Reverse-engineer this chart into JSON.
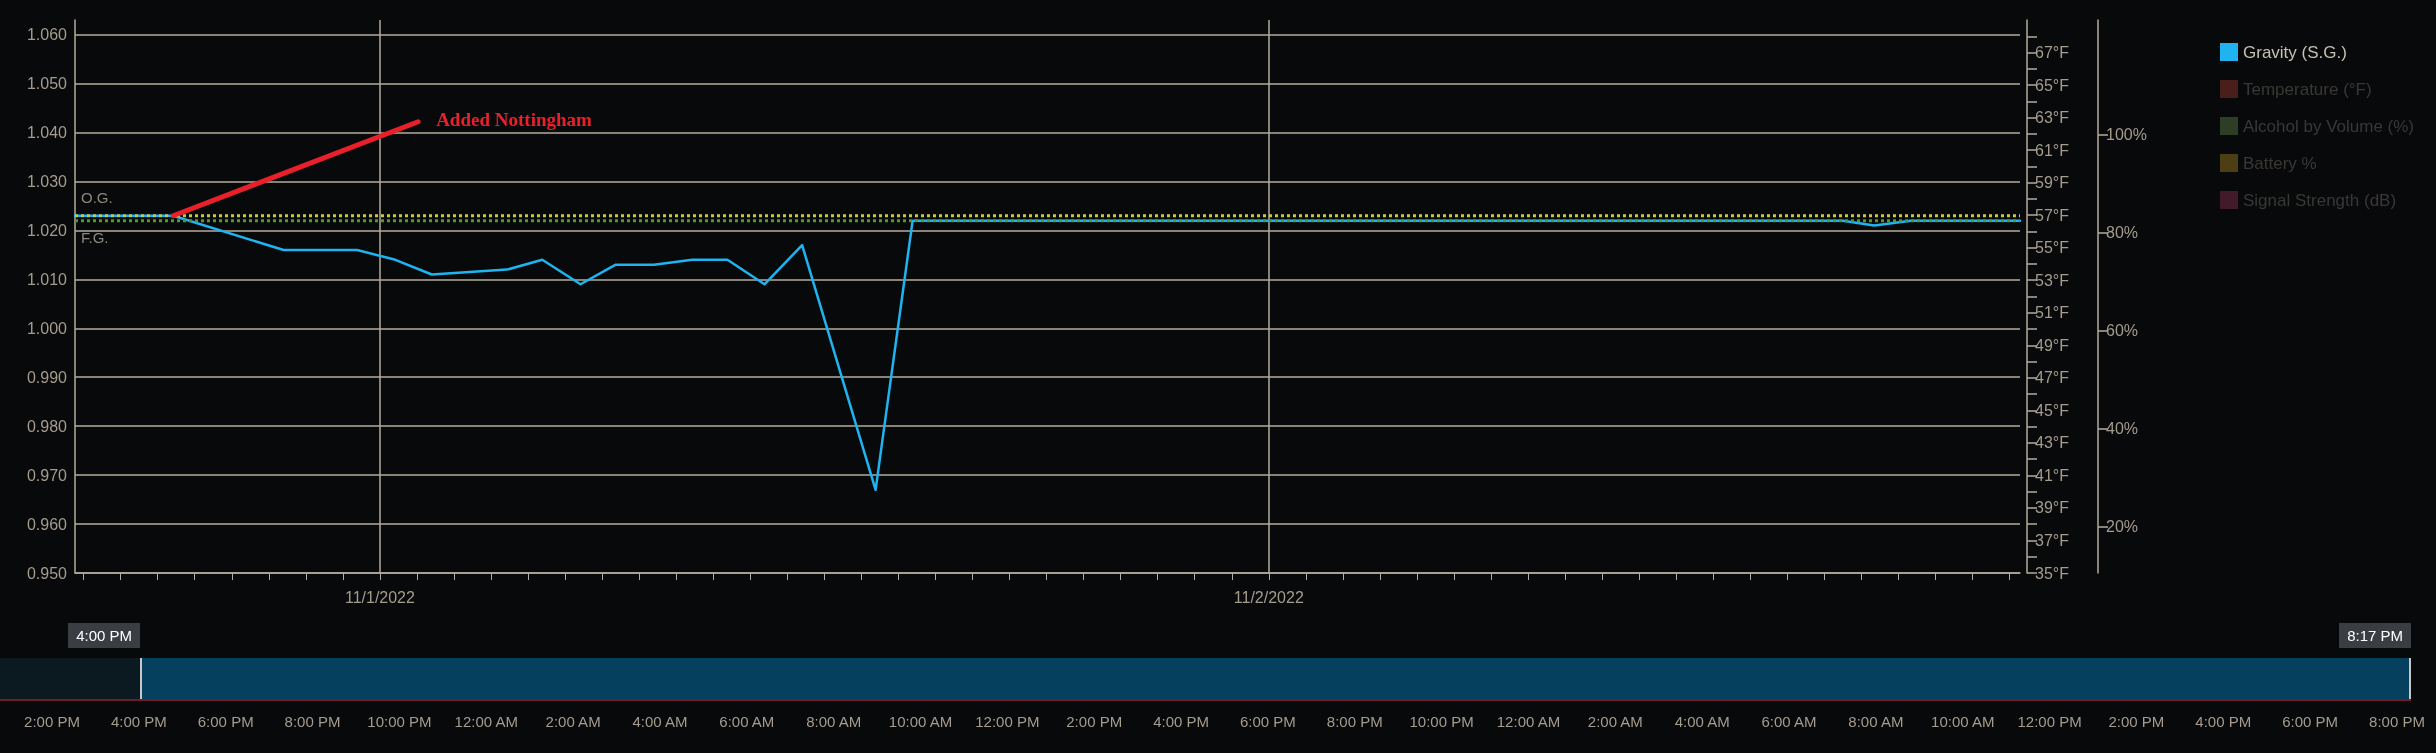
{
  "chart_data": {
    "type": "line",
    "series": [
      {
        "name": "Gravity (S.G.)",
        "color": "#1fb4f0",
        "x": [
          "2022-10-31T15:46",
          "2022-10-31T18:25",
          "2022-10-31T21:24",
          "2022-10-31T23:23",
          "2022-11-01T00:25",
          "2022-11-01T01:24",
          "2022-11-01T03:26",
          "2022-11-01T04:23",
          "2022-11-01T05:25",
          "2022-11-01T06:22",
          "2022-11-01T07:24",
          "2022-11-01T08:26",
          "2022-11-01T09:23",
          "2022-11-01T10:23",
          "2022-11-01T11:24",
          "2022-11-01T13:23",
          "2022-11-01T14:23",
          "2022-11-01T20:00",
          "2022-11-02T00:00",
          "2022-11-02T03:00",
          "2022-11-02T09:00",
          "2022-11-02T15:30",
          "2022-11-02T16:21",
          "2022-11-02T17:20",
          "2022-11-02T20:17"
        ],
        "values": [
          1.023,
          1.023,
          1.016,
          1.016,
          1.014,
          1.011,
          1.012,
          1.014,
          1.009,
          1.013,
          1.013,
          1.014,
          1.014,
          1.009,
          1.017,
          0.967,
          1.022,
          1.022,
          1.022,
          1.022,
          1.022,
          1.022,
          1.021,
          1.022,
          1.022
        ]
      },
      {
        "name": "Temperature (°F)",
        "color": "#4a1e1b"
      },
      {
        "name": "Alcohol by Volume (%)",
        "color": "#2e3d25"
      },
      {
        "name": "Battery %",
        "color": "#4d3e14"
      },
      {
        "name": "Signal Strength (dB)",
        "color": "#431a2a"
      }
    ],
    "marker": "none",
    "legend": "top right",
    "grid": true,
    "xlim": [
      "2022-10-31T15:46",
      "2022-11-02T20:17"
    ],
    "xticks": [
      {
        "value": "2022-10-31T16:00",
        "label": null
      },
      {
        "value": "2022-10-31T17:00",
        "label": null
      },
      {
        "value": "2022-10-31T18:00",
        "label": null
      },
      {
        "value": "2022-10-31T19:00",
        "label": null
      },
      {
        "value": "2022-10-31T20:00",
        "label": null
      },
      {
        "value": "2022-10-31T21:00",
        "label": null
      },
      {
        "value": "2022-10-31T22:00",
        "label": null
      },
      {
        "value": "2022-10-31T23:00",
        "label": null
      },
      {
        "value": "2022-11-01T00:00",
        "label": "11/1/2022"
      },
      {
        "value": "2022-11-01T01:00",
        "label": null
      },
      {
        "value": "2022-11-01T02:00",
        "label": null
      },
      {
        "value": "2022-11-01T03:00",
        "label": null
      },
      {
        "value": "2022-11-01T04:00",
        "label": null
      },
      {
        "value": "2022-11-01T05:00",
        "label": null
      },
      {
        "value": "2022-11-01T06:00",
        "label": null
      },
      {
        "value": "2022-11-01T07:00",
        "label": null
      },
      {
        "value": "2022-11-01T08:00",
        "label": null
      },
      {
        "value": "2022-11-01T09:00",
        "label": null
      },
      {
        "value": "2022-11-01T10:00",
        "label": null
      },
      {
        "value": "2022-11-01T11:00",
        "label": null
      },
      {
        "value": "2022-11-01T12:00",
        "label": null
      },
      {
        "value": "2022-11-01T13:00",
        "label": null
      },
      {
        "value": "2022-11-01T14:00",
        "label": null
      },
      {
        "value": "2022-11-01T15:00",
        "label": null
      },
      {
        "value": "2022-11-01T16:00",
        "label": null
      },
      {
        "value": "2022-11-01T17:00",
        "label": null
      },
      {
        "value": "2022-11-01T18:00",
        "label": null
      },
      {
        "value": "2022-11-01T19:00",
        "label": null
      },
      {
        "value": "2022-11-01T20:00",
        "label": null
      },
      {
        "value": "2022-11-01T21:00",
        "label": null
      },
      {
        "value": "2022-11-01T22:00",
        "label": null
      },
      {
        "value": "2022-11-01T23:00",
        "label": null
      },
      {
        "value": "2022-11-02T00:00",
        "label": "11/2/2022"
      },
      {
        "value": "2022-11-02T01:00",
        "label": null
      },
      {
        "value": "2022-11-02T02:00",
        "label": null
      },
      {
        "value": "2022-11-02T03:00",
        "label": null
      },
      {
        "value": "2022-11-02T04:00",
        "label": null
      },
      {
        "value": "2022-11-02T05:00",
        "label": null
      },
      {
        "value": "2022-11-02T06:00",
        "label": null
      },
      {
        "value": "2022-11-02T07:00",
        "label": null
      },
      {
        "value": "2022-11-02T08:00",
        "label": null
      },
      {
        "value": "2022-11-02T09:00",
        "label": null
      },
      {
        "value": "2022-11-02T10:00",
        "label": null
      },
      {
        "value": "2022-11-02T11:00",
        "label": null
      },
      {
        "value": "2022-11-02T12:00",
        "label": null
      },
      {
        "value": "2022-11-02T13:00",
        "label": null
      },
      {
        "value": "2022-11-02T14:00",
        "label": null
      },
      {
        "value": "2022-11-02T15:00",
        "label": null
      },
      {
        "value": "2022-11-02T16:00",
        "label": null
      },
      {
        "value": "2022-11-02T17:00",
        "label": null
      },
      {
        "value": "2022-11-02T18:00",
        "label": null
      },
      {
        "value": "2022-11-02T19:00",
        "label": null
      },
      {
        "value": "2022-11-02T20:00",
        "label": null
      }
    ],
    "ylim": [
      0.95,
      1.063
    ],
    "yticks": [
      {
        "value": 0.95,
        "label": "0.950"
      },
      {
        "value": 0.96,
        "label": "0.960"
      },
      {
        "value": 0.97,
        "label": "0.970"
      },
      {
        "value": 0.98,
        "label": "0.980"
      },
      {
        "value": 0.99,
        "label": "0.990"
      },
      {
        "value": 1.0,
        "label": "1.000"
      },
      {
        "value": 1.01,
        "label": "1.010"
      },
      {
        "value": 1.02,
        "label": "1.020"
      },
      {
        "value": 1.03,
        "label": "1.030"
      },
      {
        "value": 1.04,
        "label": "1.040"
      },
      {
        "value": 1.05,
        "label": "1.050"
      },
      {
        "value": 1.06,
        "label": "1.060"
      }
    ],
    "y2lim": [
      35,
      69
    ],
    "y2ticks": [
      {
        "value": 35,
        "label": "35°F"
      },
      {
        "value": 36,
        "label": null
      },
      {
        "value": 37,
        "label": "37°F"
      },
      {
        "value": 38,
        "label": null
      },
      {
        "value": 39,
        "label": "39°F"
      },
      {
        "value": 40,
        "label": null
      },
      {
        "value": 41,
        "label": "41°F"
      },
      {
        "value": 42,
        "label": null
      },
      {
        "value": 43,
        "label": "43°F"
      },
      {
        "value": 44,
        "label": null
      },
      {
        "value": 45,
        "label": "45°F"
      },
      {
        "value": 46,
        "label": null
      },
      {
        "value": 47,
        "label": "47°F"
      },
      {
        "value": 48,
        "label": null
      },
      {
        "value": 49,
        "label": "49°F"
      },
      {
        "value": 50,
        "label": null
      },
      {
        "value": 51,
        "label": "51°F"
      },
      {
        "value": 52,
        "label": null
      },
      {
        "value": 53,
        "label": "53°F"
      },
      {
        "value": 54,
        "label": null
      },
      {
        "value": 55,
        "label": "55°F"
      },
      {
        "value": 56,
        "label": null
      },
      {
        "value": 57,
        "label": "57°F"
      },
      {
        "value": 58,
        "label": null
      },
      {
        "value": 59,
        "label": "59°F"
      },
      {
        "value": 60,
        "label": null
      },
      {
        "value": 61,
        "label": "61°F"
      },
      {
        "value": 62,
        "label": null
      },
      {
        "value": 63,
        "label": "63°F"
      },
      {
        "value": 64,
        "label": null
      },
      {
        "value": 65,
        "label": "65°F"
      },
      {
        "value": 66,
        "label": null
      },
      {
        "value": 67,
        "label": "67°F"
      },
      {
        "value": 68,
        "label": null
      }
    ],
    "y3lim": [
      10.5,
      123.4
    ],
    "y3ticks": [
      {
        "value": 20,
        "label": "20%"
      },
      {
        "value": 40,
        "label": "40%"
      },
      {
        "value": 60,
        "label": "60%"
      },
      {
        "value": 80,
        "label": "80%"
      },
      {
        "value": 100,
        "label": "100%"
      }
    ],
    "ref_lines": [
      {
        "axis": "y",
        "value": 1.023,
        "label": "O.G.",
        "color": "#c8c83a",
        "line_style": "dotted"
      },
      {
        "axis": "y",
        "value": 1.022,
        "label": "F.G.",
        "color": "#4e9a2a",
        "line_style": "dotted"
      }
    ],
    "annotations": [
      {
        "text": "Added Nottingham",
        "x": "2022-10-31T18:25",
        "y": 1.023
      },
      "4:00 PM",
      "8:17 PM",
      "2:00 PM",
      "4:00 PM",
      "6:00 PM",
      "8:00 PM",
      "10:00 PM",
      "12:00 AM",
      "2:00 AM",
      "4:00 AM",
      "6:00 AM",
      "8:00 AM",
      "10:00 AM",
      "12:00 PM",
      "2:00 PM",
      "4:00 PM",
      "6:00 PM",
      "8:00 PM",
      "10:00 PM",
      "12:00 AM",
      "2:00 AM",
      "4:00 AM",
      "6:00 AM",
      "8:00 AM",
      "10:00 AM",
      "12:00 PM",
      "2:00 PM",
      "4:00 PM",
      "6:00 PM",
      "8:00 PM"
    ]
  }
}
